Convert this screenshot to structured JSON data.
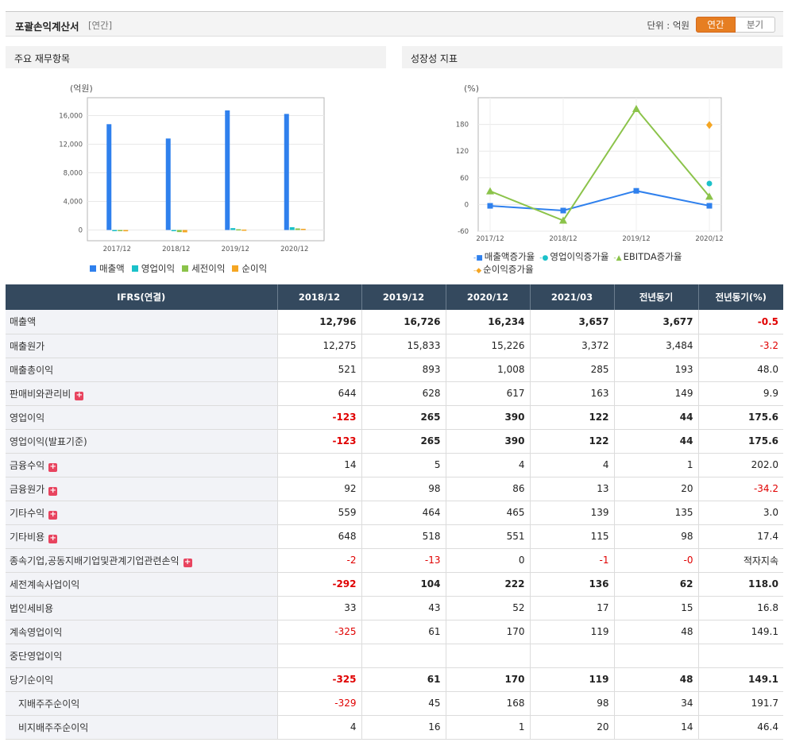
{
  "header": {
    "title": "포괄손익계산서",
    "period_tag": "[연간]",
    "unit_label": "단위 : 억원",
    "toggle_annual": "연간",
    "toggle_quarter": "분기"
  },
  "panels": {
    "left_title": "주요 재무항목",
    "right_title": "성장성 지표"
  },
  "colors": {
    "accent": "#e67e22",
    "table_header": "#34495e",
    "negative": "#e00000",
    "revenue": "#2f80ed",
    "operating": "#1bc1c9",
    "pretax": "#8bc34a",
    "net": "#f5a623"
  },
  "chart_data": [
    {
      "type": "bar",
      "unit_label": "(억원)",
      "categories": [
        "2017/12",
        "2018/12",
        "2019/12",
        "2020/12"
      ],
      "series": [
        {
          "name": "매출액",
          "color": "#2f80ed",
          "values": [
            14800,
            12796,
            16726,
            16234
          ]
        },
        {
          "name": "영업이익",
          "color": "#1bc1c9",
          "values": [
            -50,
            -123,
            265,
            390
          ]
        },
        {
          "name": "세전이익",
          "color": "#8bc34a",
          "values": [
            -150,
            -292,
            104,
            222
          ]
        },
        {
          "name": "순이익",
          "color": "#f5a623",
          "values": [
            -180,
            -325,
            61,
            170
          ]
        }
      ],
      "ylim": [
        -1500,
        18500
      ],
      "yticks": [
        0,
        4000,
        8000,
        12000,
        16000
      ],
      "ytick_labels": [
        "0",
        "4,000",
        "8,000",
        "12,000",
        "16,000"
      ],
      "grid": true,
      "legend_position": "bottom"
    },
    {
      "type": "line",
      "unit_label": "(%)",
      "categories": [
        "2017/12",
        "2018/12",
        "2019/12",
        "2020/12"
      ],
      "series": [
        {
          "name": "매출액증가율",
          "color": "#2f80ed",
          "marker": "square",
          "values": [
            -3,
            -13.6,
            30.7,
            -2.9
          ]
        },
        {
          "name": "영업이익증가율",
          "color": "#1bc1c9",
          "marker": "circle",
          "values": [
            null,
            null,
            null,
            47.2
          ]
        },
        {
          "name": "EBITDA증가율",
          "color": "#8bc34a",
          "marker": "triangle",
          "values": [
            30,
            -36,
            215,
            18
          ]
        },
        {
          "name": "순이익증가율",
          "color": "#f5a623",
          "marker": "diamond",
          "values": [
            null,
            null,
            null,
            178.7
          ]
        }
      ],
      "ylim": [
        -60,
        240
      ],
      "yticks": [
        -60,
        0,
        60,
        120,
        180
      ],
      "ytick_labels": [
        "-60",
        "0",
        "60",
        "120",
        "180"
      ],
      "grid": true,
      "legend_position": "bottom"
    }
  ],
  "table": {
    "columns": [
      "IFRS(연결)",
      "2018/12",
      "2019/12",
      "2020/12",
      "2021/03",
      "전년동기",
      "전년동기(%)"
    ],
    "rows": [
      {
        "label": "매출액",
        "bold": true,
        "plus": false,
        "indent": false,
        "values": [
          "12,796",
          "16,726",
          "16,234",
          "3,657",
          "3,677",
          "-0.5"
        ]
      },
      {
        "label": "매출원가",
        "bold": false,
        "plus": false,
        "indent": false,
        "values": [
          "12,275",
          "15,833",
          "15,226",
          "3,372",
          "3,484",
          "-3.2"
        ]
      },
      {
        "label": "매출총이익",
        "bold": false,
        "plus": false,
        "indent": false,
        "values": [
          "521",
          "893",
          "1,008",
          "285",
          "193",
          "48.0"
        ]
      },
      {
        "label": "판매비와관리비",
        "bold": false,
        "plus": true,
        "indent": false,
        "values": [
          "644",
          "628",
          "617",
          "163",
          "149",
          "9.9"
        ]
      },
      {
        "label": "영업이익",
        "bold": true,
        "plus": false,
        "indent": false,
        "values": [
          "-123",
          "265",
          "390",
          "122",
          "44",
          "175.6"
        ]
      },
      {
        "label": "영업이익(발표기준)",
        "bold": true,
        "plus": false,
        "indent": false,
        "values": [
          "-123",
          "265",
          "390",
          "122",
          "44",
          "175.6"
        ]
      },
      {
        "label": "금융수익",
        "bold": false,
        "plus": true,
        "indent": false,
        "values": [
          "14",
          "5",
          "4",
          "4",
          "1",
          "202.0"
        ]
      },
      {
        "label": "금융원가",
        "bold": false,
        "plus": true,
        "indent": false,
        "values": [
          "92",
          "98",
          "86",
          "13",
          "20",
          "-34.2"
        ]
      },
      {
        "label": "기타수익",
        "bold": false,
        "plus": true,
        "indent": false,
        "values": [
          "559",
          "464",
          "465",
          "139",
          "135",
          "3.0"
        ]
      },
      {
        "label": "기타비용",
        "bold": false,
        "plus": true,
        "indent": false,
        "values": [
          "648",
          "518",
          "551",
          "115",
          "98",
          "17.4"
        ]
      },
      {
        "label": "종속기업,공동지배기업및관계기업관련손익",
        "bold": false,
        "plus": true,
        "indent": false,
        "values": [
          "-2",
          "-13",
          "0",
          "-1",
          "-0",
          "적자지속"
        ]
      },
      {
        "label": "세전계속사업이익",
        "bold": true,
        "plus": false,
        "indent": false,
        "values": [
          "-292",
          "104",
          "222",
          "136",
          "62",
          "118.0"
        ]
      },
      {
        "label": "법인세비용",
        "bold": false,
        "plus": false,
        "indent": false,
        "values": [
          "33",
          "43",
          "52",
          "17",
          "15",
          "16.8"
        ]
      },
      {
        "label": "계속영업이익",
        "bold": false,
        "plus": false,
        "indent": false,
        "values": [
          "-325",
          "61",
          "170",
          "119",
          "48",
          "149.1"
        ]
      },
      {
        "label": "중단영업이익",
        "bold": false,
        "plus": false,
        "indent": false,
        "values": [
          "",
          "",
          "",
          "",
          "",
          ""
        ]
      },
      {
        "label": "당기순이익",
        "bold": true,
        "plus": false,
        "indent": false,
        "values": [
          "-325",
          "61",
          "170",
          "119",
          "48",
          "149.1"
        ]
      },
      {
        "label": "지배주주순이익",
        "bold": false,
        "plus": false,
        "indent": true,
        "values": [
          "-329",
          "45",
          "168",
          "98",
          "34",
          "191.7"
        ]
      },
      {
        "label": "비지배주주순이익",
        "bold": false,
        "plus": false,
        "indent": true,
        "values": [
          "4",
          "16",
          "1",
          "20",
          "14",
          "46.4"
        ]
      }
    ]
  }
}
